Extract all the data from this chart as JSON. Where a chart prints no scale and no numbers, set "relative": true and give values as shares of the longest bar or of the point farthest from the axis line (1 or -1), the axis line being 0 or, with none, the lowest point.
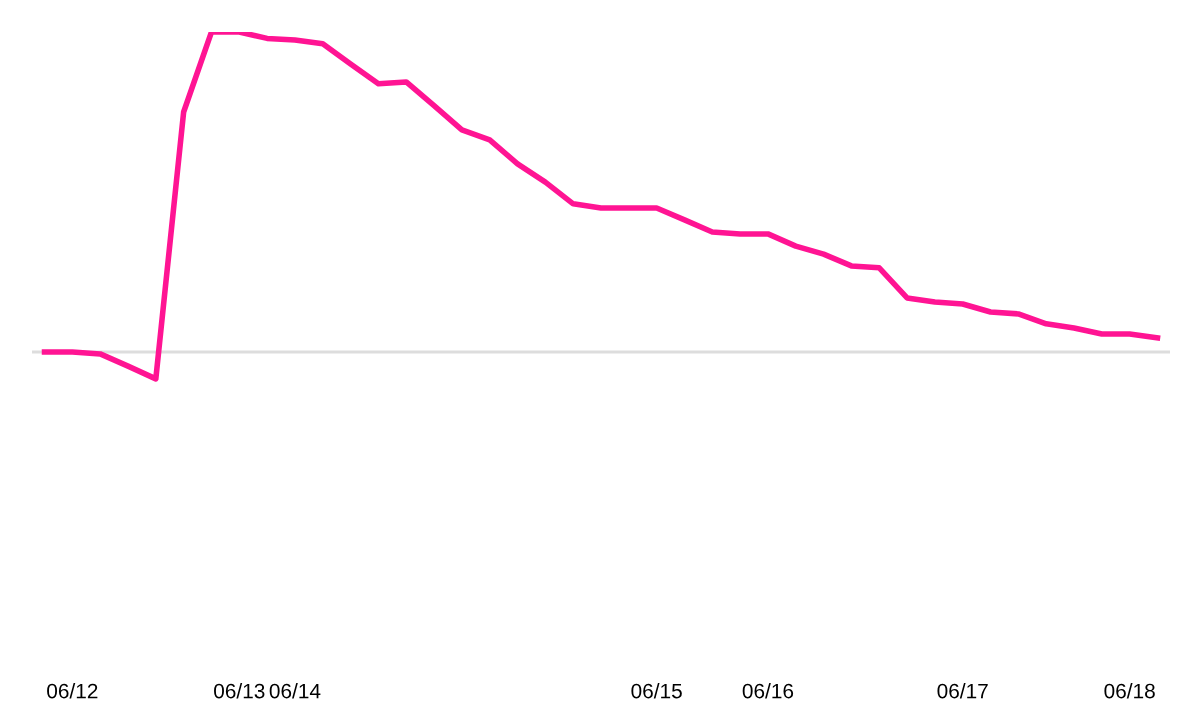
{
  "chart_data": {
    "type": "line",
    "relative": true,
    "categories": [
      null,
      "06/12",
      null,
      null,
      null,
      null,
      null,
      "06/13",
      null,
      "06/14",
      null,
      null,
      null,
      null,
      null,
      null,
      null,
      null,
      null,
      null,
      null,
      null,
      "06/15",
      null,
      null,
      null,
      "06/16",
      null,
      null,
      null,
      null,
      null,
      null,
      "06/17",
      null,
      null,
      null,
      null,
      null,
      "06/18",
      null
    ],
    "series": [
      {
        "color": "#ff1493",
        "values": [
          0,
          0,
          -0.006,
          -0.044,
          -0.084,
          0.75,
          1,
          1,
          0.98,
          0.975,
          0.963,
          0.9,
          0.838,
          0.844,
          0.77,
          0.694,
          0.663,
          0.588,
          0.531,
          0.463,
          0.45,
          0.45,
          0.45,
          0.413,
          0.375,
          0.369,
          0.369,
          0.331,
          0.306,
          0.269,
          0.263,
          0.169,
          0.156,
          0.15,
          0.125,
          0.119,
          0.088,
          0.075,
          0.056,
          0.056,
          0.044
        ]
      }
    ],
    "grid": false,
    "marker": "none",
    "line_style": "solid"
  }
}
